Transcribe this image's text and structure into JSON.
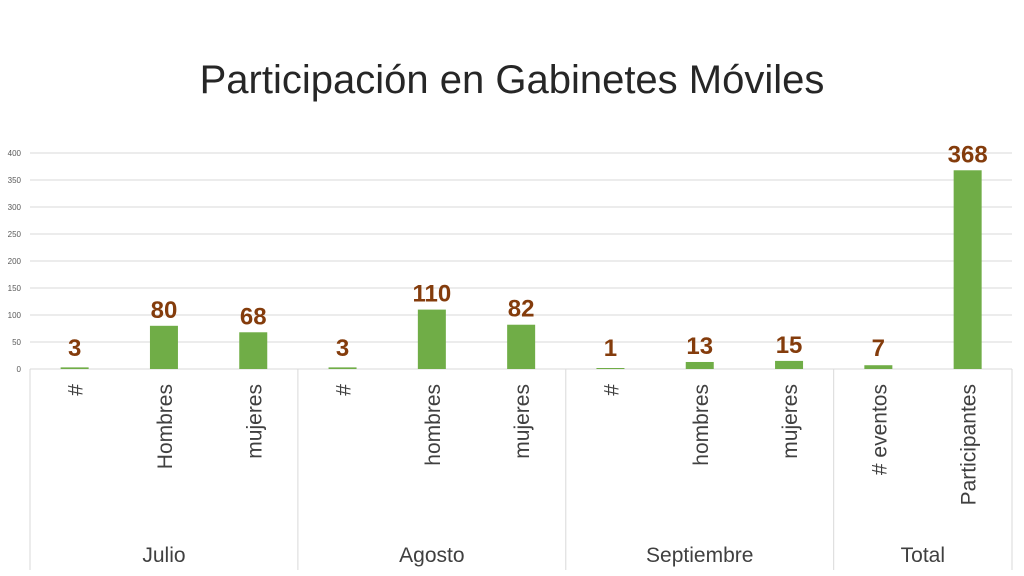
{
  "chart_data": {
    "type": "bar",
    "title": "Participación en Gabinetes Móviles",
    "xlabel": "",
    "ylabel": "",
    "ylim": [
      0,
      400
    ],
    "yticks": [
      0,
      50,
      100,
      150,
      200,
      250,
      300,
      350,
      400
    ],
    "grid": true,
    "legend": "none",
    "categories": [
      "#",
      "Hombres",
      "mujeres",
      "#",
      "hombres",
      "mujeres",
      "#",
      "hombres",
      "mujeres",
      "# eventos",
      "Participantes"
    ],
    "values": [
      3,
      80,
      68,
      3,
      110,
      82,
      1,
      13,
      15,
      7,
      368
    ],
    "groups": [
      {
        "label": "Julio",
        "count": 3
      },
      {
        "label": "Agosto",
        "count": 3
      },
      {
        "label": "Septiembre",
        "count": 3
      },
      {
        "label": "Total",
        "count": 2
      }
    ],
    "colors": {
      "bar": "#70AD47",
      "data_label": "#843C0C",
      "grid": "#D9D9D9",
      "axis_text": "#595959",
      "category_text": "#404040"
    }
  }
}
